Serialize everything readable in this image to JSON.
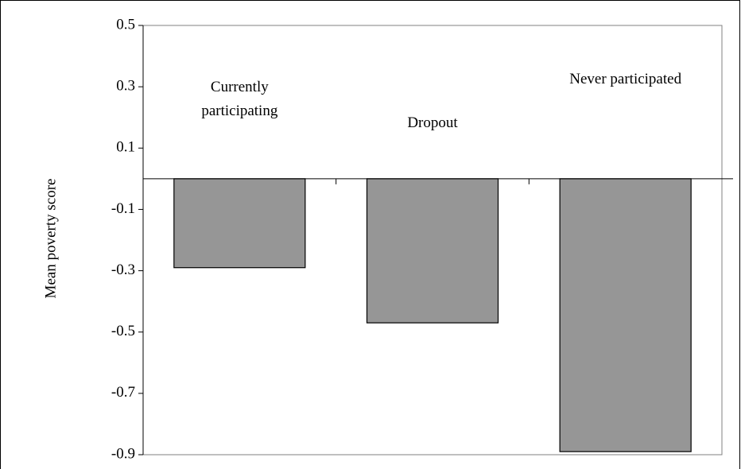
{
  "chart_data": {
    "type": "bar",
    "y_label": "Mean poverty score",
    "categories": [
      "Currently participating",
      "Dropout",
      "Never participated"
    ],
    "values": [
      -0.29,
      -0.47,
      -0.89
    ],
    "color": "#969696",
    "ylim": [
      -0.9,
      0.5
    ],
    "yticks": [
      -0.9,
      -0.7,
      -0.5,
      -0.3,
      -0.1,
      0.1,
      0.3,
      0.5
    ],
    "grid": false
  }
}
